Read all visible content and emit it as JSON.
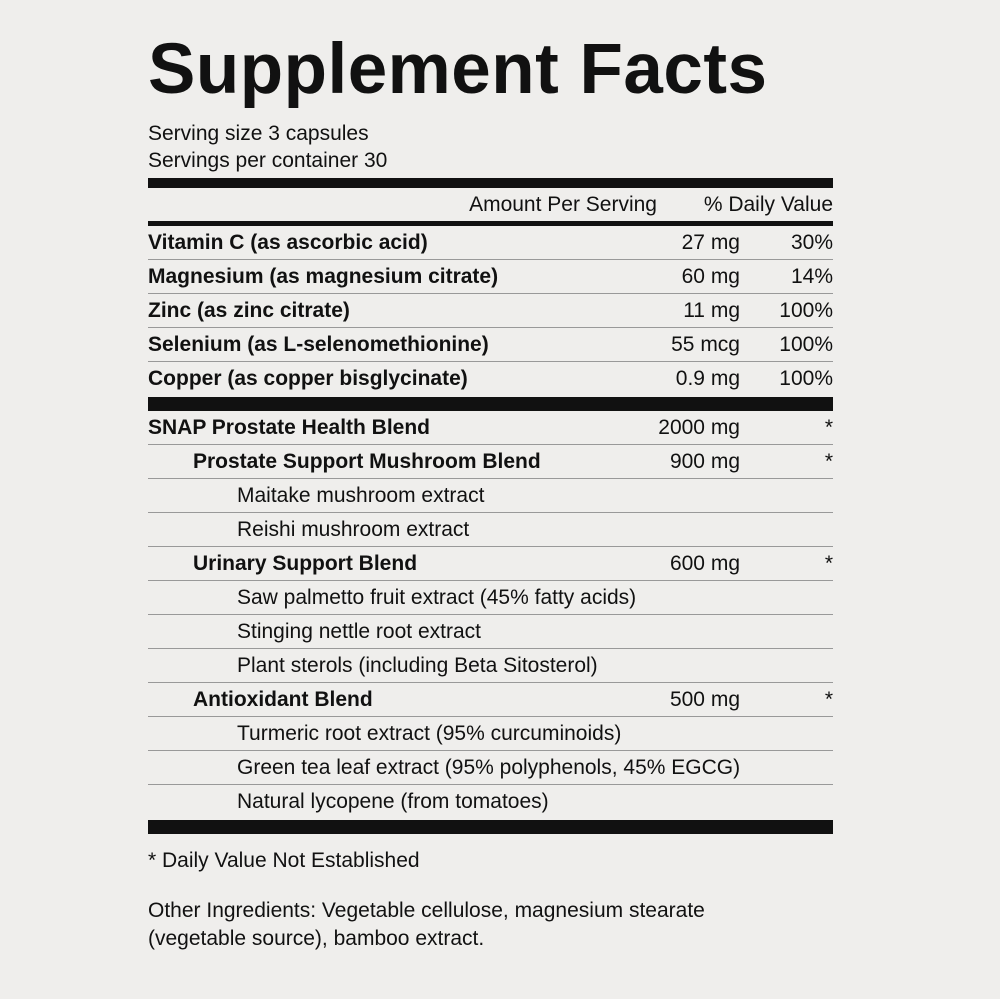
{
  "title": "Supplement Facts",
  "serving_size": "Serving size 3 capsules",
  "servings_per_container": "Servings per container 30",
  "header": {
    "amount": "Amount Per Serving",
    "daily_value": "% Daily Value"
  },
  "nutrients": [
    {
      "name": "Vitamin C (as ascorbic acid)",
      "amount": "27 mg",
      "daily_value": "30%"
    },
    {
      "name": "Magnesium (as magnesium citrate)",
      "amount": "60 mg",
      "daily_value": "14%"
    },
    {
      "name": "Zinc (as zinc citrate)",
      "amount": "11 mg",
      "daily_value": "100%"
    },
    {
      "name": "Selenium (as L-selenomethionine)",
      "amount": "55 mcg",
      "daily_value": "100%"
    },
    {
      "name": "Copper (as copper bisglycinate)",
      "amount": "0.9 mg",
      "daily_value": "100%"
    }
  ],
  "blend": {
    "name": "SNAP Prostate Health Blend",
    "amount": "2000 mg",
    "daily_value": "*",
    "components": [
      {
        "name": "Prostate Support Mushroom Blend",
        "amount": "900 mg",
        "daily_value": "*",
        "ingredients": [
          "Maitake mushroom extract",
          "Reishi mushroom extract"
        ]
      },
      {
        "name": "Urinary Support Blend",
        "amount": "600 mg",
        "daily_value": "*",
        "ingredients": [
          "Saw palmetto fruit extract (45% fatty acids)",
          "Stinging nettle root extract",
          "Plant sterols (including Beta Sitosterol)"
        ]
      },
      {
        "name": "Antioxidant Blend",
        "amount": "500 mg",
        "daily_value": "*",
        "ingredients": [
          "Turmeric root extract (95% curcuminoids)",
          "Green tea leaf extract (95% polyphenols, 45% EGCG)",
          "Natural lycopene (from tomatoes)"
        ]
      }
    ]
  },
  "footnote": "* Daily Value Not Established",
  "other_ingredients": [
    "Other Ingredients: Vegetable cellulose, magnesium stearate",
    "(vegetable source), bamboo extract."
  ]
}
